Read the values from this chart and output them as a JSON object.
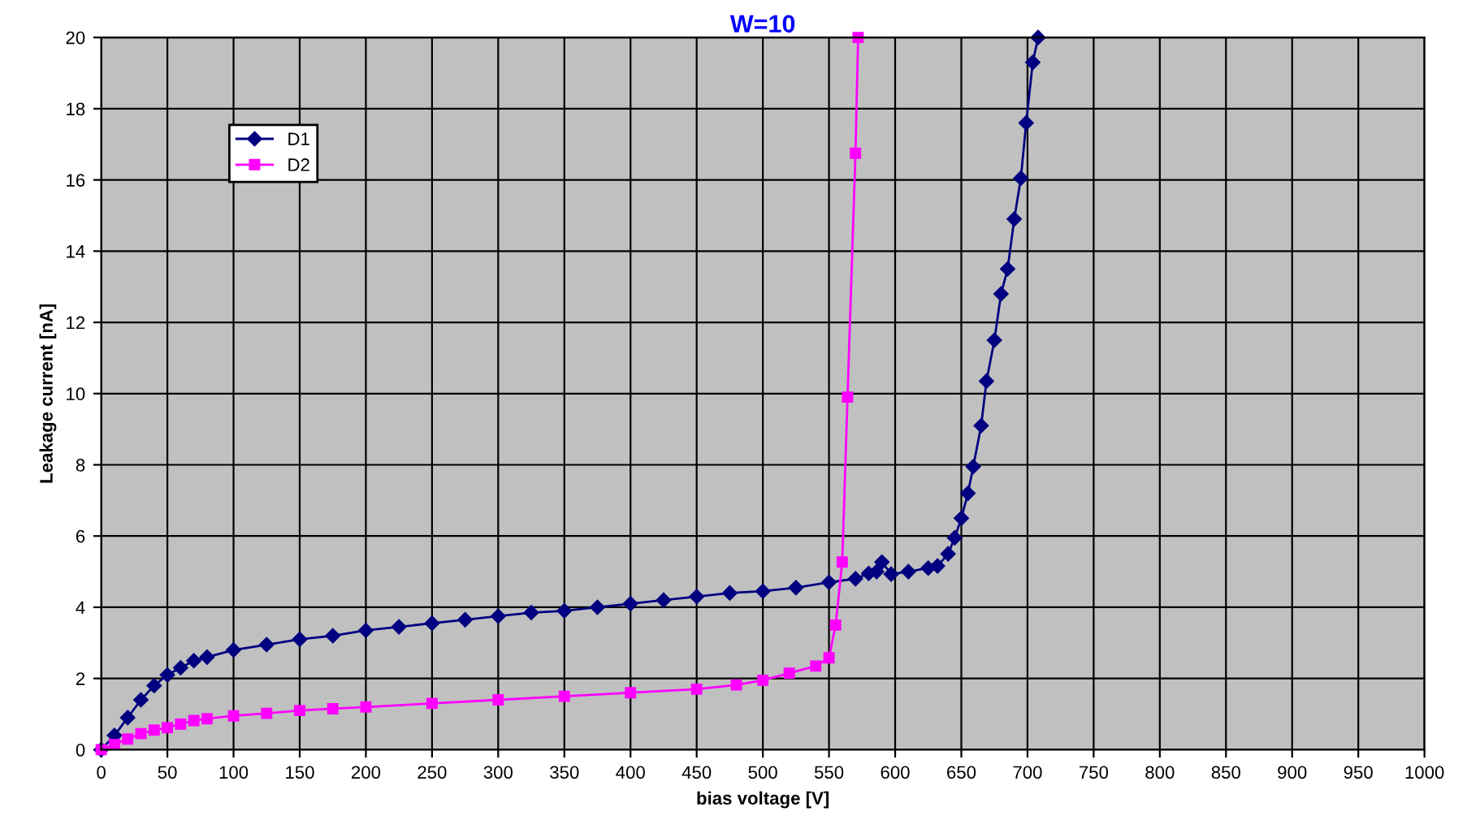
{
  "chart_data": {
    "type": "line",
    "title": "W=10",
    "xlabel": "bias voltage [V]",
    "ylabel": "Leakage current [nA]",
    "xlim": [
      0,
      1000
    ],
    "xticks": [
      0,
      50,
      100,
      150,
      200,
      250,
      300,
      350,
      400,
      450,
      500,
      550,
      600,
      650,
      700,
      750,
      800,
      850,
      900,
      950,
      1000
    ],
    "ylim": [
      0,
      20
    ],
    "yticks": [
      0,
      2,
      4,
      6,
      8,
      10,
      12,
      14,
      16,
      18,
      20
    ],
    "grid": true,
    "legend": "top left",
    "series": [
      {
        "name": "D1",
        "color": "#000080",
        "marker": "diamond",
        "x": [
          0,
          10,
          20,
          30,
          40,
          50,
          60,
          70,
          80,
          100,
          125,
          150,
          175,
          200,
          225,
          250,
          275,
          300,
          325,
          350,
          375,
          400,
          425,
          450,
          475,
          500,
          525,
          550,
          570,
          580,
          586,
          590,
          597,
          610,
          625,
          632,
          640,
          645,
          650,
          655,
          659,
          665,
          669,
          675,
          680,
          685,
          690,
          695,
          699,
          704,
          708
        ],
        "values": [
          0,
          0.4,
          0.9,
          1.4,
          1.8,
          2.1,
          2.3,
          2.5,
          2.6,
          2.8,
          2.95,
          3.1,
          3.2,
          3.35,
          3.45,
          3.55,
          3.65,
          3.75,
          3.85,
          3.9,
          4.0,
          4.1,
          4.2,
          4.3,
          4.4,
          4.45,
          4.55,
          4.7,
          4.8,
          4.95,
          5.0,
          5.27,
          4.93,
          5.0,
          5.1,
          5.16,
          5.5,
          5.95,
          6.5,
          7.2,
          7.95,
          9.1,
          10.35,
          11.5,
          12.8,
          13.5,
          14.9,
          16.05,
          17.6,
          19.3,
          20
        ]
      },
      {
        "name": "D2",
        "color": "#ff00ff",
        "marker": "square",
        "x": [
          0,
          10,
          20,
          30,
          40,
          50,
          60,
          70,
          80,
          100,
          125,
          150,
          175,
          200,
          250,
          300,
          350,
          400,
          450,
          480,
          500,
          520,
          540,
          550,
          555,
          560,
          564,
          570,
          572
        ],
        "values": [
          0,
          0.15,
          0.3,
          0.45,
          0.55,
          0.62,
          0.72,
          0.82,
          0.87,
          0.95,
          1.02,
          1.1,
          1.15,
          1.2,
          1.3,
          1.4,
          1.5,
          1.6,
          1.7,
          1.82,
          1.95,
          2.15,
          2.35,
          2.58,
          3.5,
          5.27,
          9.9,
          16.75,
          20
        ]
      }
    ]
  }
}
